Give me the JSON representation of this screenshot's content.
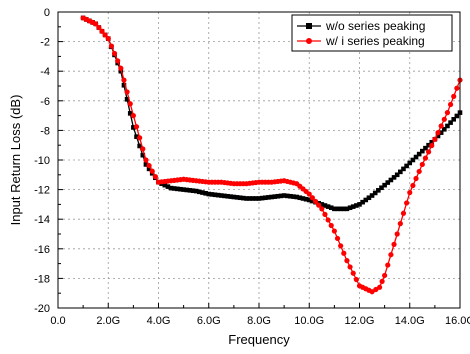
{
  "chart_data": {
    "type": "line",
    "xlabel": "Frequency",
    "ylabel": "Input Return Loss (dB)",
    "xlim": [
      0,
      16
    ],
    "ylim": [
      -20,
      0
    ],
    "x_ticks": [
      0,
      2,
      4,
      6,
      8,
      10,
      12,
      14,
      16
    ],
    "x_tick_labels": [
      "0.0",
      "2.0G",
      "4.0G",
      "6.0G",
      "8.0G",
      "10.0G",
      "12.0G",
      "14.0G",
      "16.0G"
    ],
    "y_ticks": [
      0,
      -2,
      -4,
      -6,
      -8,
      -10,
      -12,
      -14,
      -16,
      -18,
      -20
    ],
    "y_tick_labels": [
      "0",
      "-2",
      "-4",
      "-6",
      "-8",
      "-10",
      "-12",
      "-14",
      "-16",
      "-18",
      "-20"
    ],
    "grid": true,
    "legend_position": "top-right",
    "series": [
      {
        "name": "w/o series peaking",
        "color": "#000000",
        "marker": "square",
        "x": [
          1.0,
          1.5,
          2.0,
          2.5,
          3.0,
          3.5,
          4.0,
          4.5,
          5.0,
          5.5,
          6.0,
          6.5,
          7.0,
          7.5,
          8.0,
          8.5,
          9.0,
          9.5,
          10.0,
          10.5,
          11.0,
          11.5,
          12.0,
          12.5,
          13.0,
          13.5,
          14.0,
          14.5,
          15.0,
          15.5,
          16.0
        ],
        "y": [
          -0.4,
          -0.8,
          -1.8,
          -4.0,
          -7.8,
          -10.3,
          -11.5,
          -11.9,
          -12.0,
          -12.1,
          -12.3,
          -12.4,
          -12.5,
          -12.6,
          -12.6,
          -12.5,
          -12.4,
          -12.5,
          -12.7,
          -13.0,
          -13.3,
          -13.3,
          -13.0,
          -12.4,
          -11.7,
          -11.0,
          -10.2,
          -9.4,
          -8.6,
          -7.7,
          -6.8
        ]
      },
      {
        "name": "w/ i series peaking",
        "color": "#ff0000",
        "marker": "circle",
        "x": [
          1.0,
          1.5,
          2.0,
          2.5,
          3.0,
          3.5,
          4.0,
          4.5,
          5.0,
          5.5,
          6.0,
          6.5,
          7.0,
          7.5,
          8.0,
          8.5,
          9.0,
          9.5,
          10.0,
          10.5,
          11.0,
          11.5,
          12.0,
          12.5,
          12.8,
          13.0,
          13.5,
          14.0,
          14.5,
          15.0,
          15.5,
          16.0
        ],
        "y": [
          -0.4,
          -0.8,
          -1.8,
          -3.8,
          -7.0,
          -10.0,
          -11.5,
          -11.4,
          -11.3,
          -11.4,
          -11.5,
          -11.5,
          -11.6,
          -11.6,
          -11.5,
          -11.5,
          -11.4,
          -11.6,
          -12.3,
          -13.3,
          -14.8,
          -16.8,
          -18.5,
          -18.9,
          -18.6,
          -17.8,
          -15.0,
          -12.2,
          -10.3,
          -8.6,
          -6.8,
          -4.6
        ]
      }
    ]
  }
}
